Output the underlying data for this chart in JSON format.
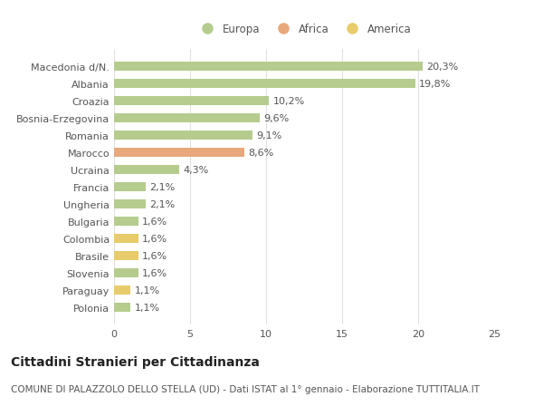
{
  "categories": [
    "Polonia",
    "Paraguay",
    "Slovenia",
    "Brasile",
    "Colombia",
    "Bulgaria",
    "Ungheria",
    "Francia",
    "Ucraina",
    "Marocco",
    "Romania",
    "Bosnia-Erzegovina",
    "Croazia",
    "Albania",
    "Macedonia d/N."
  ],
  "values": [
    1.1,
    1.1,
    1.6,
    1.6,
    1.6,
    1.6,
    2.1,
    2.1,
    4.3,
    8.6,
    9.1,
    9.6,
    10.2,
    19.8,
    20.3
  ],
  "colors": [
    "#b5cc8e",
    "#e8cb6a",
    "#b5cc8e",
    "#e8cb6a",
    "#e8cb6a",
    "#b5cc8e",
    "#b5cc8e",
    "#b5cc8e",
    "#b5cc8e",
    "#e8a87c",
    "#b5cc8e",
    "#b5cc8e",
    "#b5cc8e",
    "#b5cc8e",
    "#b5cc8e"
  ],
  "labels": [
    "1,1%",
    "1,1%",
    "1,6%",
    "1,6%",
    "1,6%",
    "1,6%",
    "2,1%",
    "2,1%",
    "4,3%",
    "8,6%",
    "9,1%",
    "9,6%",
    "10,2%",
    "19,8%",
    "20,3%"
  ],
  "continent_legend": [
    "Europa",
    "Africa",
    "America"
  ],
  "continent_colors": [
    "#b5cc8e",
    "#e8a87c",
    "#e8cb6a"
  ],
  "title": "Cittadini Stranieri per Cittadinanza",
  "subtitle": "COMUNE DI PALAZZOLO DELLO STELLA (UD) - Dati ISTAT al 1° gennaio - Elaborazione TUTTITALIA.IT",
  "xlim": [
    0,
    25
  ],
  "xticks": [
    0,
    5,
    10,
    15,
    20,
    25
  ],
  "background_color": "#ffffff",
  "grid_color": "#e0e0e0",
  "bar_height": 0.55,
  "title_fontsize": 10,
  "subtitle_fontsize": 7.5,
  "label_fontsize": 8,
  "tick_fontsize": 8,
  "legend_fontsize": 8.5
}
